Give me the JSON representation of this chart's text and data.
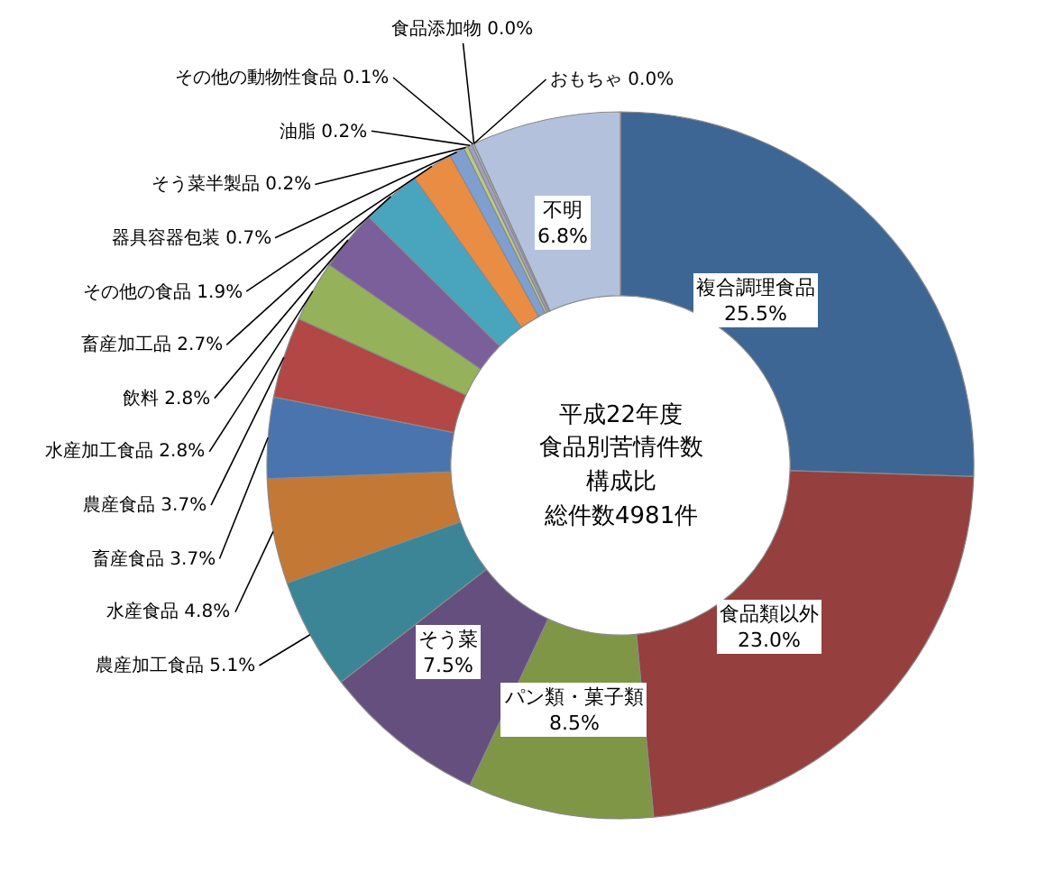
{
  "chart_data": {
    "type": "donut",
    "annotations": [
      "平成22年度",
      "食品別苦情件数",
      "構成比",
      "総件数4981件"
    ],
    "categories": [
      "複合調理食品",
      "食品類以外",
      "パン類・菓子類",
      "そう菜",
      "農産加工食品",
      "水産食品",
      "畜産食品",
      "農産食品",
      "水産加工食品",
      "飲料",
      "畜産加工品",
      "その他の食品",
      "器具容器包装",
      "そう菜半製品",
      "油脂",
      "その他の動物性食品",
      "食品添加物",
      "おもちゃ",
      "不明"
    ],
    "values": [
      25.5,
      23.0,
      8.5,
      7.5,
      5.1,
      4.8,
      3.7,
      3.7,
      2.8,
      2.8,
      2.7,
      1.9,
      0.7,
      0.2,
      0.2,
      0.1,
      0.0,
      0.0,
      6.8
    ],
    "value_labels": [
      "25.5%",
      "23.0%",
      "8.5%",
      "7.5%",
      "5.1%",
      "4.8%",
      "3.7%",
      "3.7%",
      "2.8%",
      "2.8%",
      "2.7%",
      "1.9%",
      "0.7%",
      "0.2%",
      "0.2%",
      "0.1%",
      "0.0%",
      "0.0%",
      "6.8%"
    ],
    "colors": [
      "#3e6694",
      "#953f3e",
      "#7f9647",
      "#644f7e",
      "#3b8597",
      "#c47835",
      "#4a74ae",
      "#b24745",
      "#95b25a",
      "#7a5f9a",
      "#48a5bd",
      "#e98d45",
      "#7f9fcf",
      "#b5cd86",
      "#a99bbd",
      "#9cc9d8",
      "#8c8cb4",
      "#c0a0c0",
      "#b3c1dd"
    ]
  }
}
